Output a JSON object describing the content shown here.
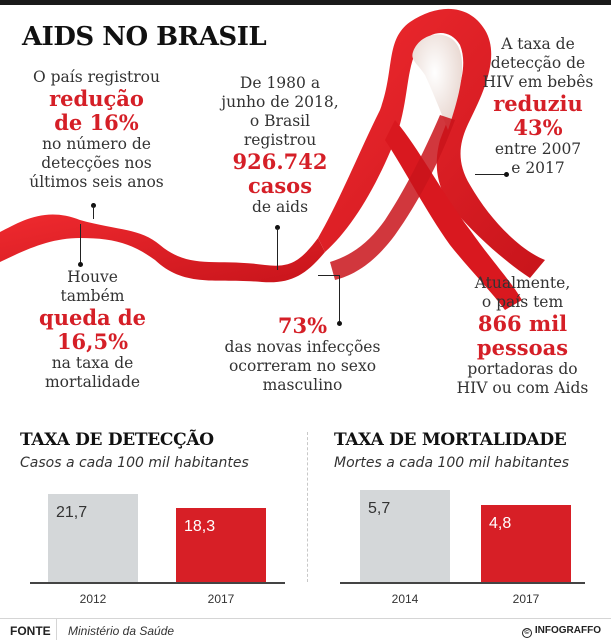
{
  "header": {
    "title": "AIDS NO BRASIL"
  },
  "colors": {
    "accent": "#d51f27",
    "ribbon": "#e31e24",
    "bar_old": "#d4d7d9",
    "bar_new": "#d71f26"
  },
  "facts": [
    {
      "id": "reducao",
      "lines_before": [
        "O país registrou"
      ],
      "highlight": [
        "redução",
        "de 16%"
      ],
      "lines_after": [
        "no número de",
        "detecções nos",
        "últimos seis anos"
      ]
    },
    {
      "id": "casos",
      "lines_before": [
        "De 1980 a",
        "junho de 2018,",
        "o Brasil",
        "registrou"
      ],
      "highlight": [
        "926.742",
        "casos"
      ],
      "lines_after": [
        "de aids"
      ]
    },
    {
      "id": "bebes",
      "lines_before": [
        "A taxa de",
        "detecção de",
        "HIV em bebês"
      ],
      "highlight": [
        "reduziu",
        "43%"
      ],
      "lines_after": [
        "entre 2007",
        "e 2017"
      ]
    },
    {
      "id": "mortalidade",
      "lines_before": [
        "Houve",
        "também"
      ],
      "highlight": [
        "queda de",
        "16,5%"
      ],
      "lines_after": [
        "na taxa de",
        "mortalidade"
      ]
    },
    {
      "id": "masculino",
      "lines_before": [],
      "highlight": [
        "73%"
      ],
      "lines_after": [
        "das novas infecções",
        "ocorreram no sexo",
        "masculino"
      ]
    },
    {
      "id": "portadores",
      "lines_before": [
        "Atualmente,",
        "o país tem"
      ],
      "highlight": [
        "866 mil",
        "pessoas"
      ],
      "lines_after": [
        "portadoras do",
        "HIV ou com Aids"
      ]
    }
  ],
  "chart_data": [
    {
      "type": "bar",
      "title": "TAXA DE DETECÇÃO",
      "subtitle": "Casos a cada 100 mil habitantes",
      "categories": [
        "2012",
        "2017"
      ],
      "values": [
        21.7,
        18.3
      ],
      "value_labels": [
        "21,7",
        "18,3"
      ],
      "xlabel": "",
      "ylabel": "",
      "ylim": [
        0,
        21.7
      ],
      "grid": false
    },
    {
      "type": "bar",
      "title": "TAXA DE MORTALIDADE",
      "subtitle": "Mortes a cada 100 mil habitantes",
      "categories": [
        "2014",
        "2017"
      ],
      "values": [
        5.7,
        4.8
      ],
      "value_labels": [
        "5,7",
        "4,8"
      ],
      "xlabel": "",
      "ylabel": "",
      "ylim": [
        0,
        5.7
      ],
      "grid": false
    }
  ],
  "footer": {
    "source_label": "FONTE",
    "source_value": "Ministério da Saúde",
    "credit": "INFOGRAFFO",
    "credit_symbol": "©"
  }
}
